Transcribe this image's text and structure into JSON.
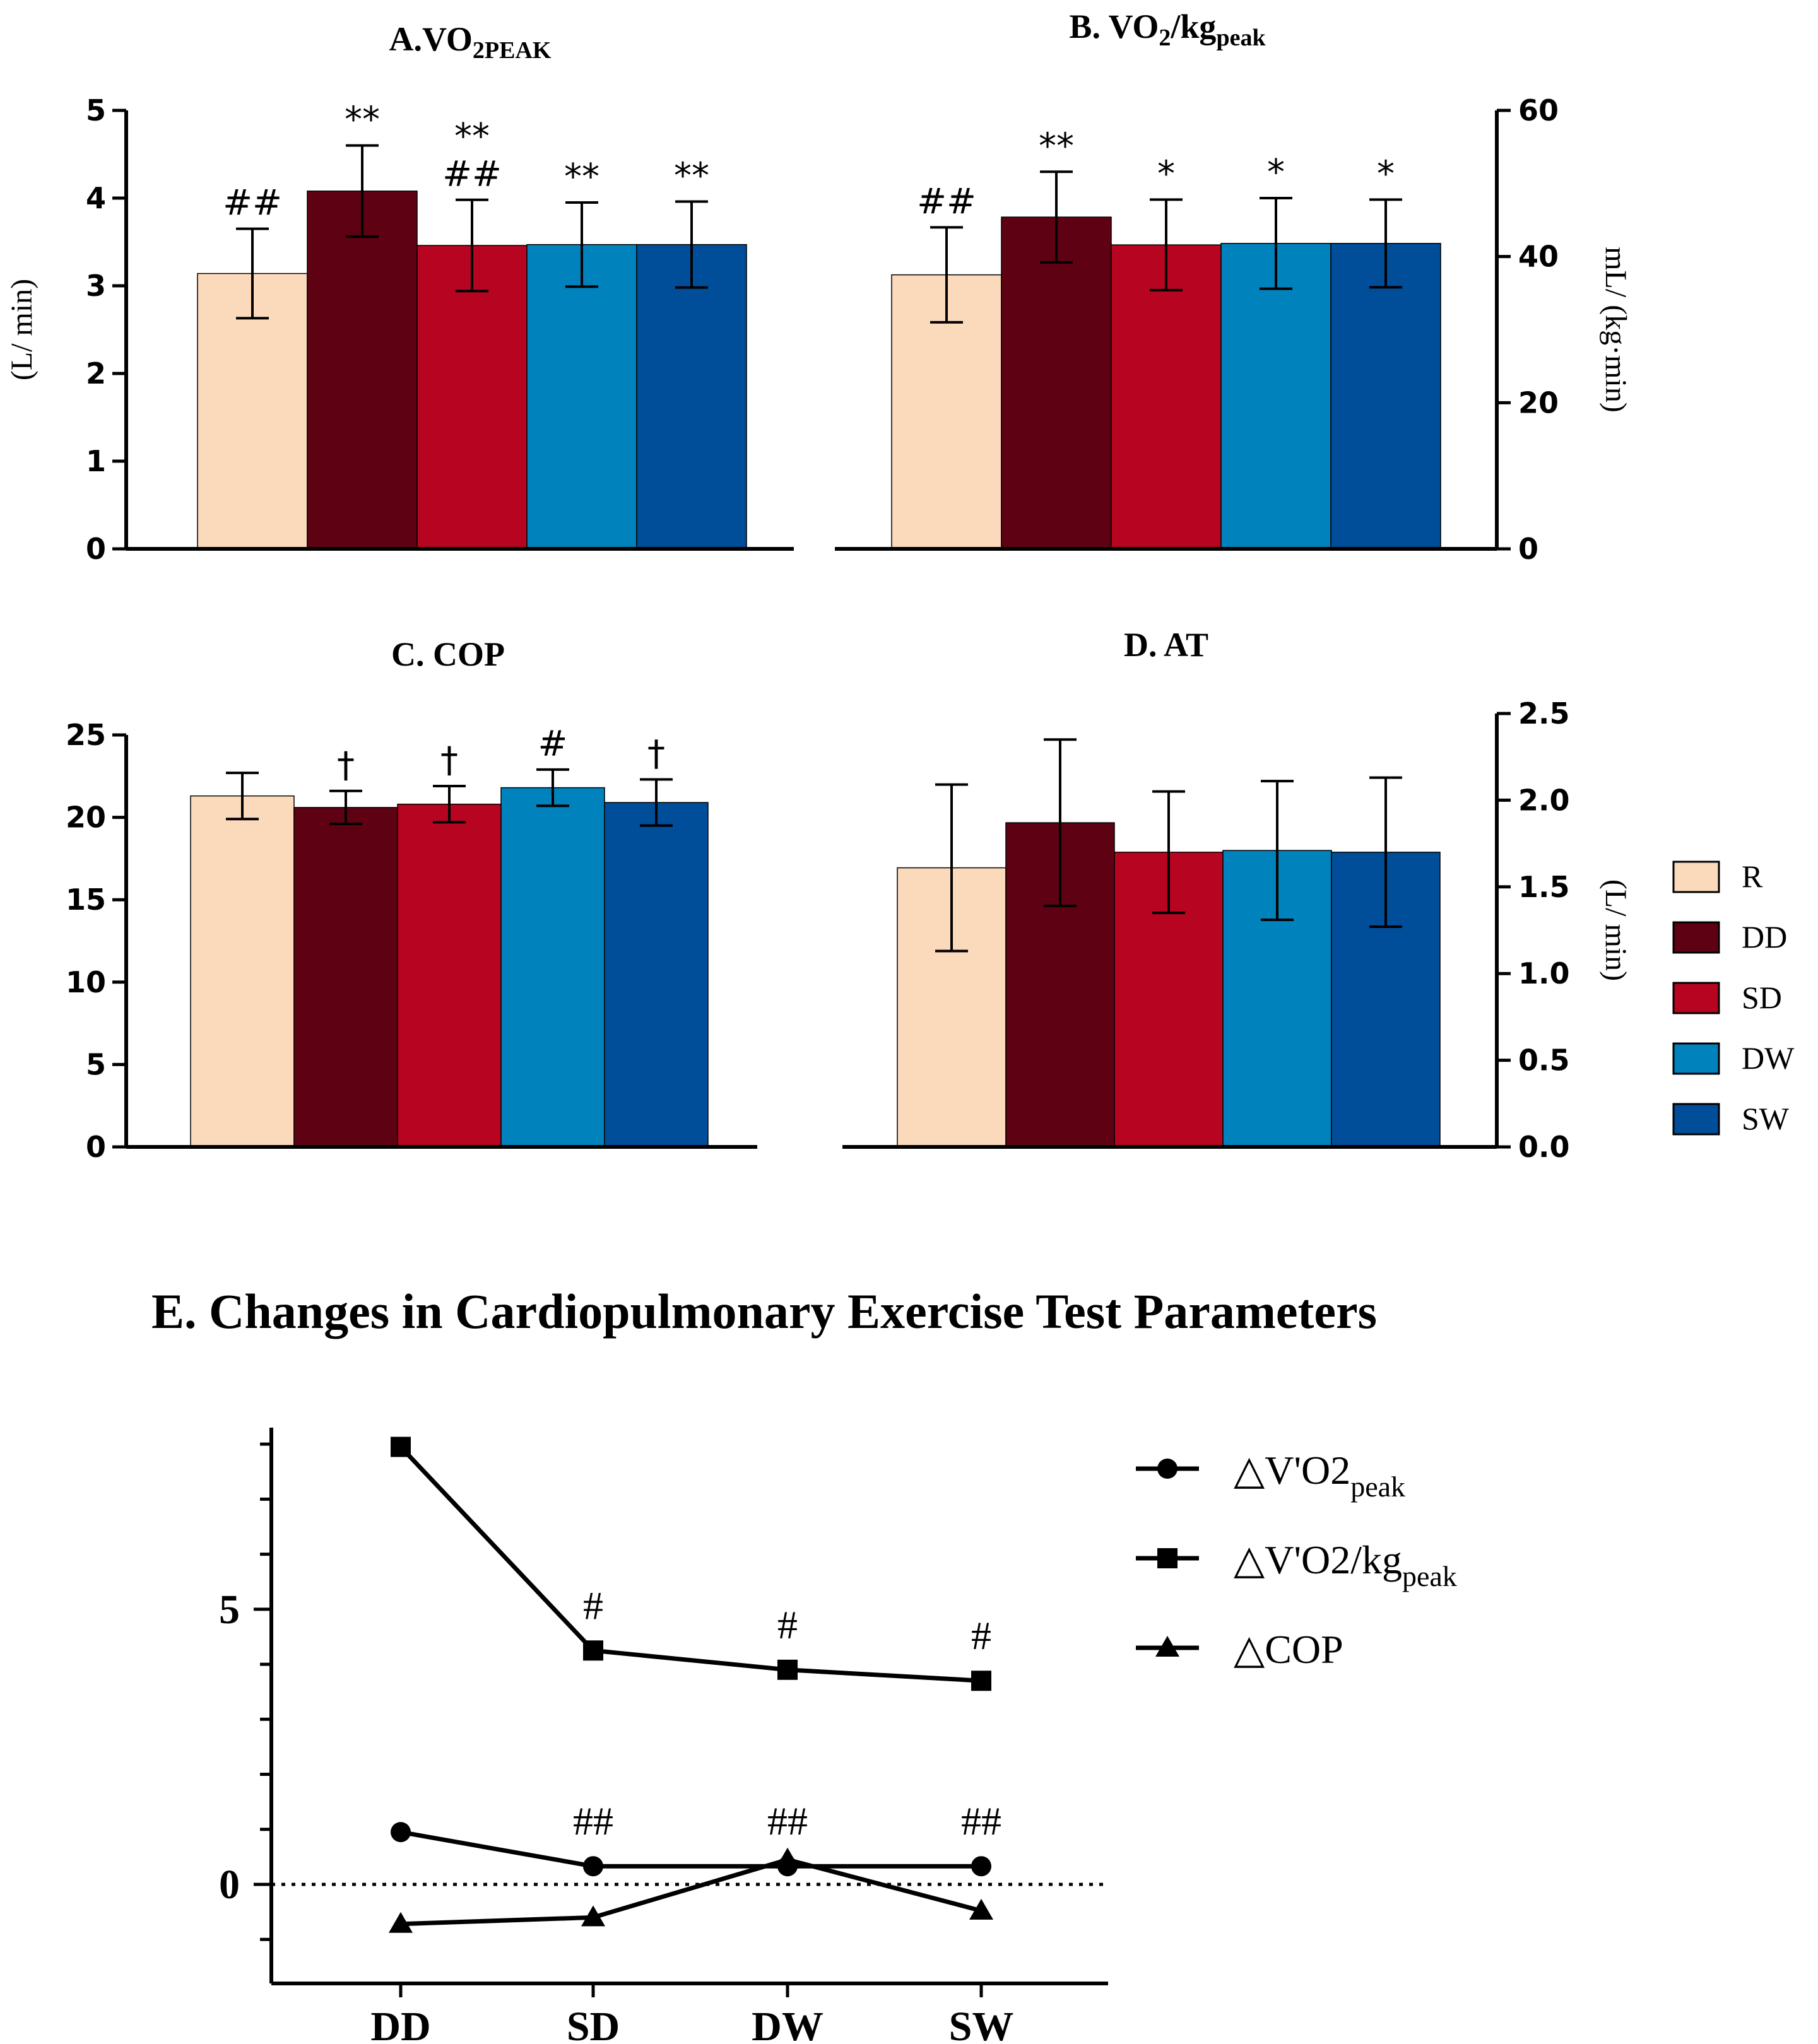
{
  "legend": {
    "items": [
      {
        "label": "R",
        "color": "#FBD9BB"
      },
      {
        "label": "DD",
        "color": "#5E0213"
      },
      {
        "label": "SD",
        "color": "#B70420"
      },
      {
        "label": "DW",
        "color": "#0082BC"
      },
      {
        "label": "SW",
        "color": "#004E99"
      }
    ]
  },
  "chart_data": [
    {
      "id": "A",
      "type": "bar",
      "title_main": "A.VO",
      "title_sub": "2PEAK",
      "ylabel": "(L/ min)",
      "ylim": [
        0,
        5
      ],
      "ticks": [
        "0",
        "1",
        "2",
        "3",
        "4",
        "5"
      ],
      "tick_values": [
        0,
        1,
        2,
        3,
        4,
        5
      ],
      "categories": [
        "R",
        "DD",
        "SD",
        "DW",
        "SW"
      ],
      "values": [
        3.14,
        4.08,
        3.46,
        3.47,
        3.47
      ],
      "errors": [
        0.51,
        0.52,
        0.52,
        0.48,
        0.49
      ],
      "annotations": [
        [
          "##"
        ],
        [
          "**"
        ],
        [
          "**",
          "##"
        ],
        [
          "**"
        ],
        [
          "**"
        ]
      ]
    },
    {
      "id": "B",
      "type": "bar",
      "title_main": "B. VO",
      "title_sub1": "2",
      "title_mid": "/kg",
      "title_sub2": "peak",
      "ylabel": "mL/ (kg·min)",
      "ylim": [
        0,
        60
      ],
      "ticks": [
        "0",
        "20",
        "40",
        "60"
      ],
      "tick_values": [
        0,
        20,
        40,
        60
      ],
      "categories": [
        "R",
        "DD",
        "SD",
        "DW",
        "SW"
      ],
      "values": [
        37.5,
        45.4,
        41.6,
        41.8,
        41.8
      ],
      "errors": [
        6.5,
        6.2,
        6.2,
        6.2,
        6.0
      ],
      "annotations": [
        [
          "##"
        ],
        [
          "**"
        ],
        [
          "*"
        ],
        [
          "*"
        ],
        [
          "*"
        ]
      ]
    },
    {
      "id": "C",
      "type": "bar",
      "title": "C. COP",
      "ylim": [
        0,
        25
      ],
      "ticks": [
        "0",
        "5",
        "10",
        "15",
        "20",
        "25"
      ],
      "tick_values": [
        0,
        5,
        10,
        15,
        20,
        25
      ],
      "categories": [
        "R",
        "DD",
        "SD",
        "DW",
        "SW"
      ],
      "values": [
        21.3,
        20.6,
        20.8,
        21.8,
        20.9
      ],
      "errors": [
        1.4,
        1.0,
        1.1,
        1.1,
        1.4
      ],
      "annotations": [
        [
          ""
        ],
        [
          "†"
        ],
        [
          "†"
        ],
        [
          "#"
        ],
        [
          "†"
        ]
      ]
    },
    {
      "id": "D",
      "type": "bar",
      "title": "D. AT",
      "ylabel": "(L/ min)",
      "ylim": [
        0,
        2.5
      ],
      "ticks": [
        "0.0",
        "0.5",
        "1.0",
        "1.5",
        "2.0",
        "2.5"
      ],
      "tick_values": [
        0,
        0.5,
        1.0,
        1.5,
        2.0,
        2.5
      ],
      "categories": [
        "R",
        "DD",
        "SD",
        "DW",
        "SW"
      ],
      "values": [
        1.61,
        1.87,
        1.7,
        1.71,
        1.7
      ],
      "errors": [
        0.48,
        0.48,
        0.35,
        0.4,
        0.43
      ],
      "annotations": [
        [
          ""
        ],
        [
          ""
        ],
        [
          ""
        ],
        [
          ""
        ],
        [
          ""
        ]
      ]
    },
    {
      "id": "E",
      "type": "line",
      "title": "E. Changes in Cardiopulmonary Exercise Test Parameters",
      "categories": [
        "DD",
        "SD",
        "DW",
        "SW"
      ],
      "ylim": [
        -1.8,
        8.3
      ],
      "ticks": [
        "0",
        "5"
      ],
      "tick_values": [
        0,
        5
      ],
      "series": [
        {
          "name_main": "△V'O2",
          "name_sub": "peak",
          "marker": "circle",
          "values": [
            0.95,
            0.33,
            0.33,
            0.33
          ],
          "annotations": [
            "",
            "##",
            "##",
            "##"
          ]
        },
        {
          "name_main": "△V'O2/kg",
          "name_sub": "peak",
          "marker": "square",
          "values": [
            7.95,
            4.25,
            3.9,
            3.7
          ],
          "annotations": [
            "",
            "#",
            "#",
            "#"
          ]
        },
        {
          "name_main": "△COP",
          "name_sub": "",
          "marker": "triangle",
          "values": [
            -0.72,
            -0.6,
            0.45,
            -0.48
          ],
          "annotations": [
            "",
            "",
            "",
            ""
          ]
        }
      ]
    }
  ]
}
